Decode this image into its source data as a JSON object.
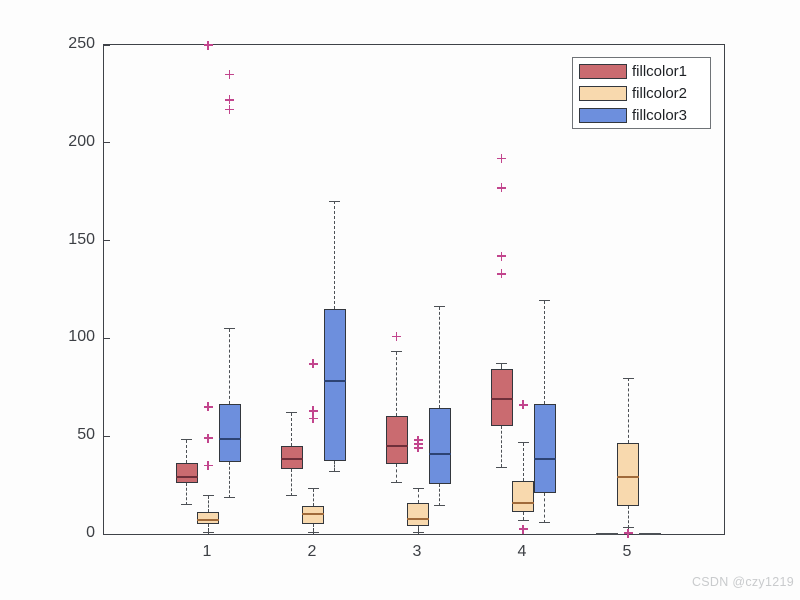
{
  "watermark": "CSDN @czy1219",
  "chart_data": {
    "type": "boxplot",
    "title": "",
    "xlabel": "",
    "ylabel": "",
    "categories": [
      "1",
      "2",
      "3",
      "4",
      "5"
    ],
    "y_axis": {
      "min": 0,
      "max": 250,
      "ticks": [
        0,
        50,
        100,
        150,
        200,
        250
      ]
    },
    "legend": {
      "position": "top-right",
      "labels": [
        "fillcolor1",
        "fillcolor2",
        "fillcolor3"
      ]
    },
    "outlier_marker": {
      "shape": "plus",
      "color": "#c2458d"
    },
    "grid": false,
    "series": [
      {
        "name": "fillcolor1",
        "fill": "#ca6b70",
        "median_color": "#6e2f3a",
        "boxes": [
          {
            "group": "1",
            "whisker_low": 15,
            "q1": 26,
            "median": 29,
            "q3": 36.5,
            "whisker_high": 48,
            "outliers": []
          },
          {
            "group": "2",
            "whisker_low": 19.5,
            "q1": 33,
            "median": 38.5,
            "q3": 45,
            "whisker_high": 62,
            "outliers": []
          },
          {
            "group": "3",
            "whisker_low": 26,
            "q1": 36,
            "median": 45,
            "q3": 60.5,
            "whisker_high": 93,
            "outliers": [
              101
            ]
          },
          {
            "group": "4",
            "whisker_low": 34,
            "q1": 55,
            "median": 69,
            "q3": 84.5,
            "whisker_high": 87,
            "outliers": [
              133,
              142,
              177,
              192
            ]
          },
          {
            "group": "5",
            "flat_at_zero": true
          }
        ]
      },
      {
        "name": "fillcolor2",
        "fill": "#f8d9ae",
        "median_color": "#a06a3a",
        "boxes": [
          {
            "group": "1",
            "whisker_low": 0.5,
            "q1": 5,
            "median": 7,
            "q3": 11,
            "whisker_high": 19.5,
            "outliers": [
              35,
              49,
              65,
              250
            ]
          },
          {
            "group": "2",
            "whisker_low": 0.5,
            "q1": 5,
            "median": 10,
            "q3": 14.5,
            "whisker_high": 23,
            "outliers": [
              59,
              63,
              87
            ]
          },
          {
            "group": "3",
            "whisker_low": 0.5,
            "q1": 4,
            "median": 7.5,
            "q3": 16,
            "whisker_high": 23,
            "outliers": [
              44,
              46,
              48
            ]
          },
          {
            "group": "4",
            "whisker_low": 7,
            "q1": 11,
            "median": 16,
            "q3": 27,
            "whisker_high": 46.5,
            "outliers": [
              2.5,
              66
            ]
          },
          {
            "group": "5",
            "whisker_low": 3,
            "q1": 14.5,
            "median": 29,
            "q3": 46.5,
            "whisker_high": 79.5,
            "outliers": [
              0.5
            ]
          }
        ]
      },
      {
        "name": "fillcolor3",
        "fill": "#6d8fdd",
        "median_color": "#2d4373",
        "boxes": [
          {
            "group": "1",
            "whisker_low": 18.5,
            "q1": 37,
            "median": 48.5,
            "q3": 66.5,
            "whisker_high": 105,
            "outliers": [
              217,
              222,
              235
            ]
          },
          {
            "group": "2",
            "whisker_low": 32,
            "q1": 37.5,
            "median": 78,
            "q3": 115,
            "whisker_high": 170,
            "outliers": []
          },
          {
            "group": "3",
            "whisker_low": 14.5,
            "q1": 25.5,
            "median": 41,
            "q3": 64.5,
            "whisker_high": 116,
            "outliers": []
          },
          {
            "group": "4",
            "whisker_low": 5.5,
            "q1": 21,
            "median": 38.5,
            "q3": 66.5,
            "whisker_high": 119,
            "outliers": []
          },
          {
            "group": "5",
            "flat_at_zero": true
          }
        ]
      }
    ]
  }
}
